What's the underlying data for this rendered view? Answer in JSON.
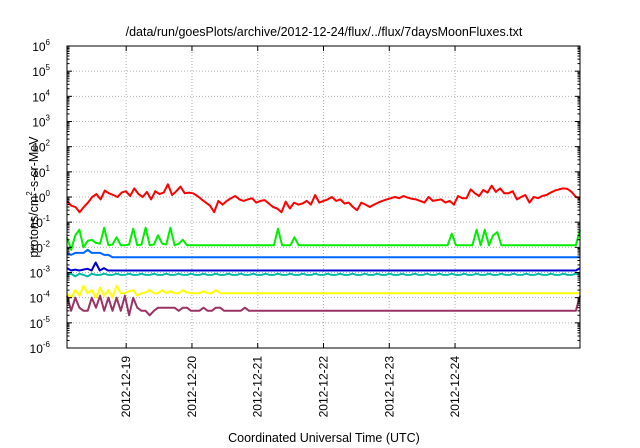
{
  "chart_data": {
    "type": "line",
    "title": "/data/run/goesPlots/archive/2012-12-24/flux/../flux/7daysMoonFluxes.txt",
    "xlabel": "Coordinated Universal Time (UTC)",
    "ylabel_base": "protons/cm",
    "ylabel_sup": "2",
    "ylabel_rest": "-s-sr-MeV",
    "y_scale": "log",
    "ylim_exp": [
      -6,
      6
    ],
    "y_ticks": [
      {
        "base": "10",
        "exp": "-6",
        "value": -6
      },
      {
        "base": "10",
        "exp": "-5",
        "value": -5
      },
      {
        "base": "10",
        "exp": "-4",
        "value": -4
      },
      {
        "base": "10",
        "exp": "-3",
        "value": -3
      },
      {
        "base": "10",
        "exp": "-2",
        "value": -2
      },
      {
        "base": "10",
        "exp": "-1",
        "value": -1
      },
      {
        "base": "10",
        "exp": "0",
        "value": 0
      },
      {
        "base": "10",
        "exp": "1",
        "value": 1
      },
      {
        "base": "10",
        "exp": "2",
        "value": 2
      },
      {
        "base": "10",
        "exp": "3",
        "value": 3
      },
      {
        "base": "10",
        "exp": "4",
        "value": 4
      },
      {
        "base": "10",
        "exp": "5",
        "value": 5
      },
      {
        "base": "10",
        "exp": "6",
        "value": 6
      }
    ],
    "x_range_days": [
      -0.9,
      6.9
    ],
    "x_ticks": [
      {
        "label": "2012-12-19",
        "day": 0
      },
      {
        "label": "2012-12-20",
        "day": 1
      },
      {
        "label": "2012-12-21",
        "day": 2
      },
      {
        "label": "2012-12-22",
        "day": 3
      },
      {
        "label": "2012-12-23",
        "day": 4
      },
      {
        "label": "2012-12-24",
        "day": 5
      }
    ],
    "grid": true,
    "legend": "none",
    "series": [
      {
        "color": "#ff0000",
        "values": [
          0.7,
          0.45,
          0.4,
          0.25,
          0.4,
          0.6,
          1.0,
          1.3,
          0.8,
          1.8,
          1.4,
          1.2,
          1.0,
          1.5,
          1.7,
          1.1,
          2.2,
          1.3,
          1.0,
          1.6,
          0.8,
          1.7,
          1.3,
          1.5,
          3.2,
          1.2,
          1.7,
          2.6,
          1.4,
          1.5,
          1.4,
          1.1,
          0.8,
          0.6,
          0.45,
          0.25,
          0.7,
          0.5,
          0.7,
          0.9,
          1.1,
          0.8,
          0.7,
          0.8,
          0.9,
          0.6,
          0.7,
          0.75,
          0.55,
          0.4,
          0.35,
          0.25,
          0.65,
          0.35,
          0.6,
          0.5,
          0.55,
          0.7,
          0.5,
          1.2,
          0.6,
          0.7,
          0.8,
          1.0,
          0.7,
          0.8,
          0.55,
          0.6,
          0.4,
          0.3,
          0.6,
          0.5,
          0.4,
          0.5,
          0.6,
          0.7,
          0.8,
          0.9,
          1.0,
          0.9,
          1.1,
          0.95,
          0.85,
          0.8,
          0.7,
          0.6,
          1.0,
          0.7,
          0.75,
          0.8,
          0.6,
          0.7,
          0.5,
          1.1,
          0.9,
          0.9,
          2.0,
          1.4,
          1.1,
          1.9,
          1.5,
          2.8,
          1.6,
          2.2,
          1.4,
          1.4,
          1.7,
          0.8,
          1.0,
          1.2,
          0.6,
          1.0,
          0.9,
          1.1,
          1.2,
          1.5,
          1.8,
          2.0,
          2.2,
          2.1,
          1.6,
          1.0,
          0.9
        ]
      },
      {
        "color": "#00ee00",
        "values": [
          0.025,
          0.008,
          0.03,
          0.05,
          0.01,
          0.018,
          0.02,
          0.015,
          0.014,
          0.06,
          0.012,
          0.013,
          0.025,
          0.012,
          0.012,
          0.013,
          0.055,
          0.012,
          0.013,
          0.06,
          0.012,
          0.013,
          0.03,
          0.014,
          0.013,
          0.06,
          0.012,
          0.014,
          0.02,
          0.012,
          0.012,
          0.012,
          0.012,
          0.012,
          0.012,
          0.012,
          0.012,
          0.012,
          0.012,
          0.012,
          0.012,
          0.012,
          0.012,
          0.012,
          0.012,
          0.012,
          0.012,
          0.012,
          0.012,
          0.012,
          0.012,
          0.055,
          0.012,
          0.012,
          0.012,
          0.025,
          0.012,
          0.012,
          0.012,
          0.012,
          0.012,
          0.012,
          0.012,
          0.012,
          0.012,
          0.012,
          0.012,
          0.012,
          0.012,
          0.012,
          0.012,
          0.012,
          0.012,
          0.012,
          0.012,
          0.012,
          0.012,
          0.012,
          0.012,
          0.012,
          0.012,
          0.012,
          0.012,
          0.012,
          0.012,
          0.012,
          0.012,
          0.012,
          0.012,
          0.012,
          0.012,
          0.012,
          0.012,
          0.035,
          0.012,
          0.012,
          0.012,
          0.012,
          0.012,
          0.05,
          0.012,
          0.05,
          0.012,
          0.03,
          0.04,
          0.012,
          0.012,
          0.012,
          0.012,
          0.012,
          0.012,
          0.012,
          0.012,
          0.012,
          0.012,
          0.012,
          0.012,
          0.012,
          0.012,
          0.012,
          0.012,
          0.012,
          0.012,
          0.012,
          0.05
        ]
      },
      {
        "color": "#0066ff",
        "values": [
          0.006,
          0.005,
          0.006,
          0.006,
          0.006,
          0.008,
          0.006,
          0.006,
          0.006,
          0.005,
          0.005,
          0.004,
          0.004,
          0.004,
          0.004,
          0.004,
          0.004,
          0.004,
          0.004,
          0.004,
          0.004,
          0.004,
          0.004,
          0.004,
          0.004,
          0.004,
          0.004,
          0.004,
          0.004,
          0.004,
          0.004,
          0.004,
          0.004,
          0.004,
          0.004,
          0.004,
          0.004,
          0.004,
          0.004,
          0.004,
          0.004,
          0.004,
          0.004,
          0.004,
          0.004,
          0.004,
          0.004,
          0.004,
          0.004,
          0.004,
          0.004,
          0.004,
          0.004,
          0.004,
          0.004,
          0.004,
          0.004,
          0.004,
          0.004,
          0.004,
          0.004,
          0.004,
          0.004,
          0.004,
          0.004,
          0.004,
          0.004,
          0.004,
          0.004,
          0.004,
          0.004,
          0.004,
          0.004,
          0.004,
          0.004,
          0.004,
          0.004,
          0.004,
          0.004,
          0.004,
          0.004,
          0.004,
          0.004,
          0.004,
          0.004,
          0.004,
          0.004,
          0.004,
          0.004,
          0.004,
          0.004,
          0.004,
          0.004,
          0.004,
          0.004,
          0.004,
          0.004,
          0.004,
          0.004,
          0.004,
          0.004,
          0.004,
          0.004,
          0.004,
          0.004,
          0.004,
          0.004,
          0.004,
          0.004,
          0.004,
          0.004,
          0.004,
          0.004,
          0.004,
          0.004,
          0.004,
          0.004,
          0.004,
          0.004,
          0.004,
          0.004,
          0.004,
          0.004,
          0.004,
          0.004
        ]
      },
      {
        "color": "#0000cc",
        "values": [
          0.0015,
          0.0012,
          0.0013,
          0.0012,
          0.0013,
          0.0014,
          0.0012,
          0.0025,
          0.0012,
          0.0015,
          0.0012,
          0.0012,
          0.0012,
          0.0012,
          0.0012,
          0.0012,
          0.0012,
          0.0012,
          0.0012,
          0.0012,
          0.0012,
          0.0012,
          0.0012,
          0.0012,
          0.0012,
          0.0012,
          0.0012,
          0.0012,
          0.0012,
          0.0012,
          0.0012,
          0.0012,
          0.0012,
          0.0012,
          0.0012,
          0.0012,
          0.0012,
          0.0012,
          0.0012,
          0.0012,
          0.0012,
          0.0012,
          0.0012,
          0.0012,
          0.0012,
          0.0012,
          0.0012,
          0.0012,
          0.0012,
          0.0012,
          0.0012,
          0.0012,
          0.0012,
          0.0012,
          0.0012,
          0.0012,
          0.0012,
          0.0012,
          0.0012,
          0.0012,
          0.0012,
          0.0012,
          0.0012,
          0.0012,
          0.0012,
          0.0012,
          0.0012,
          0.0012,
          0.0012,
          0.0012,
          0.0012,
          0.0012,
          0.0012,
          0.0012,
          0.0012,
          0.0012,
          0.0012,
          0.0012,
          0.0012,
          0.0012,
          0.0012,
          0.0012,
          0.0012,
          0.0012,
          0.0012,
          0.0012,
          0.0012,
          0.0012,
          0.0012,
          0.0012,
          0.0012,
          0.0012,
          0.0012,
          0.0012,
          0.0012,
          0.0012,
          0.0012,
          0.0012,
          0.0012,
          0.0012,
          0.0012,
          0.0012,
          0.0012,
          0.0012,
          0.0012,
          0.0012,
          0.0012,
          0.0012,
          0.0012,
          0.0012,
          0.0012,
          0.0012,
          0.0012,
          0.0012,
          0.0012,
          0.0012,
          0.0012,
          0.0012,
          0.0012,
          0.0012,
          0.0012,
          0.0012,
          0.0012,
          0.0012,
          0.0012,
          0.0015
        ]
      },
      {
        "color": "#00bbaa",
        "values": [
          0.0008,
          0.0009,
          0.0007,
          0.0009,
          0.0008,
          0.0007,
          0.0009,
          0.0008,
          0.0008,
          0.0009,
          0.0008,
          0.0008,
          0.0009,
          0.0008,
          0.0008,
          0.0009,
          0.0008,
          0.0008,
          0.0009,
          0.0008,
          0.0008,
          0.0009,
          0.0008,
          0.0008,
          0.0009,
          0.0008,
          0.0008,
          0.0009,
          0.0008,
          0.0008,
          0.0009,
          0.0008,
          0.0008,
          0.0009,
          0.0008,
          0.0008,
          0.0009,
          0.0008,
          0.0008,
          0.0009,
          0.0008,
          0.0008,
          0.0009,
          0.0008,
          0.0008,
          0.0009,
          0.0008,
          0.0008,
          0.0009,
          0.0008,
          0.0008,
          0.0009,
          0.0008,
          0.0008,
          0.0009,
          0.0008,
          0.0008,
          0.0009,
          0.0008,
          0.0008,
          0.0009,
          0.0008,
          0.0008,
          0.0009,
          0.0008,
          0.0008,
          0.0009,
          0.0008,
          0.0008,
          0.0009,
          0.0008,
          0.0008,
          0.0009,
          0.0008,
          0.0008,
          0.0009,
          0.0008,
          0.0008,
          0.0009,
          0.0008,
          0.0008,
          0.0009,
          0.0008,
          0.0008,
          0.0009,
          0.0008,
          0.0008,
          0.0009,
          0.0008,
          0.0008,
          0.0009,
          0.0008,
          0.0008,
          0.0009,
          0.0008,
          0.0008,
          0.0009,
          0.0008,
          0.0008,
          0.0009,
          0.0008,
          0.0008,
          0.0009,
          0.0008,
          0.0008,
          0.0009,
          0.0008,
          0.0008,
          0.0009,
          0.0008,
          0.0008,
          0.0009,
          0.0008,
          0.0008,
          0.0009,
          0.0008,
          0.0008,
          0.0009,
          0.0008,
          0.0008,
          0.0009,
          0.0008,
          0.0008,
          0.0009,
          0.0008
        ]
      },
      {
        "color": "#ffff00",
        "values": [
          0.00015,
          0.0001,
          0.0002,
          0.00012,
          0.0003,
          0.00015,
          0.0002,
          0.0001,
          0.00025,
          0.00012,
          0.0002,
          0.0001,
          0.0003,
          0.00015,
          0.00015,
          0.00018,
          0.0002,
          0.00012,
          0.00015,
          0.00016,
          0.0002,
          0.00015,
          0.00015,
          0.0002,
          0.00015,
          0.00018,
          0.00015,
          0.00015,
          0.0002,
          0.00016,
          0.00015,
          0.00015,
          0.00015,
          0.00018,
          0.00015,
          0.00015,
          0.0002,
          0.00015,
          0.00015,
          0.00015,
          0.00015,
          0.00015,
          0.00015,
          0.00015,
          0.00015,
          0.00015,
          0.00015,
          0.00015,
          0.00015,
          0.00015,
          0.00015,
          0.00015,
          0.00015,
          0.00015,
          0.00015,
          0.00015,
          0.00015,
          0.00015,
          0.00015,
          0.00015,
          0.00015,
          0.00015,
          0.00015,
          0.00015,
          0.00015,
          0.00015,
          0.00015,
          0.00015,
          0.00015,
          0.00015,
          0.00015,
          0.00015,
          0.00015,
          0.00015,
          0.00015,
          0.00015,
          0.00015,
          0.00015,
          0.00015,
          0.00015,
          0.00015,
          0.00015,
          0.00015,
          0.00015,
          0.00015,
          0.00015,
          0.00015,
          0.00015,
          0.00015,
          0.00015,
          0.00015,
          0.00015,
          0.00015,
          0.00015,
          0.00015,
          0.00015,
          0.00015,
          0.00015,
          0.00015,
          0.00015,
          0.00015,
          0.00015,
          0.00015,
          0.00015,
          0.00015,
          0.00015,
          0.00015,
          0.00015,
          0.00015,
          0.00015,
          0.00015,
          0.00015,
          0.00015,
          0.00015,
          0.00015,
          0.00015,
          0.00015,
          0.00015,
          0.00015,
          0.00015,
          0.00015,
          0.00015,
          0.00015,
          0.00015,
          0.00015
        ]
      },
      {
        "color": "#993366",
        "values": [
          0.00012,
          3e-05,
          0.0001,
          4e-05,
          3e-05,
          3e-05,
          0.0001,
          4e-05,
          0.00012,
          3e-05,
          0.0001,
          3e-05,
          0.0001,
          3e-05,
          0.00012,
          2e-05,
          0.0001,
          4e-05,
          3e-05,
          3e-05,
          2e-05,
          3e-05,
          4e-05,
          4e-05,
          4e-05,
          4e-05,
          4e-05,
          3e-05,
          4e-05,
          4e-05,
          3e-05,
          3e-05,
          3e-05,
          4e-05,
          3e-05,
          3e-05,
          4e-05,
          4e-05,
          3e-05,
          3e-05,
          3e-05,
          3e-05,
          3e-05,
          4e-05,
          3e-05,
          3e-05,
          3e-05,
          3e-05,
          3e-05,
          3e-05,
          3e-05,
          3e-05,
          3e-05,
          3e-05,
          3e-05,
          3e-05,
          3e-05,
          3e-05,
          3e-05,
          3e-05,
          3e-05,
          3e-05,
          3e-05,
          3e-05,
          3e-05,
          3e-05,
          3e-05,
          3e-05,
          3e-05,
          3e-05,
          3e-05,
          3e-05,
          3e-05,
          3e-05,
          3e-05,
          3e-05,
          3e-05,
          3e-05,
          3e-05,
          3e-05,
          3e-05,
          3e-05,
          3e-05,
          3e-05,
          3e-05,
          3e-05,
          3e-05,
          3e-05,
          3e-05,
          3e-05,
          3e-05,
          3e-05,
          3e-05,
          3e-05,
          3e-05,
          3e-05,
          3e-05,
          3e-05,
          3e-05,
          3e-05,
          3e-05,
          3e-05,
          3e-05,
          3e-05,
          3e-05,
          3e-05,
          3e-05,
          3e-05,
          3e-05,
          3e-05,
          3e-05,
          3e-05,
          3e-05,
          3e-05,
          3e-05,
          3e-05,
          3e-05,
          3e-05,
          3e-05,
          3e-05,
          3e-05,
          3e-05,
          3e-05,
          3e-05,
          0.00012
        ]
      }
    ]
  }
}
